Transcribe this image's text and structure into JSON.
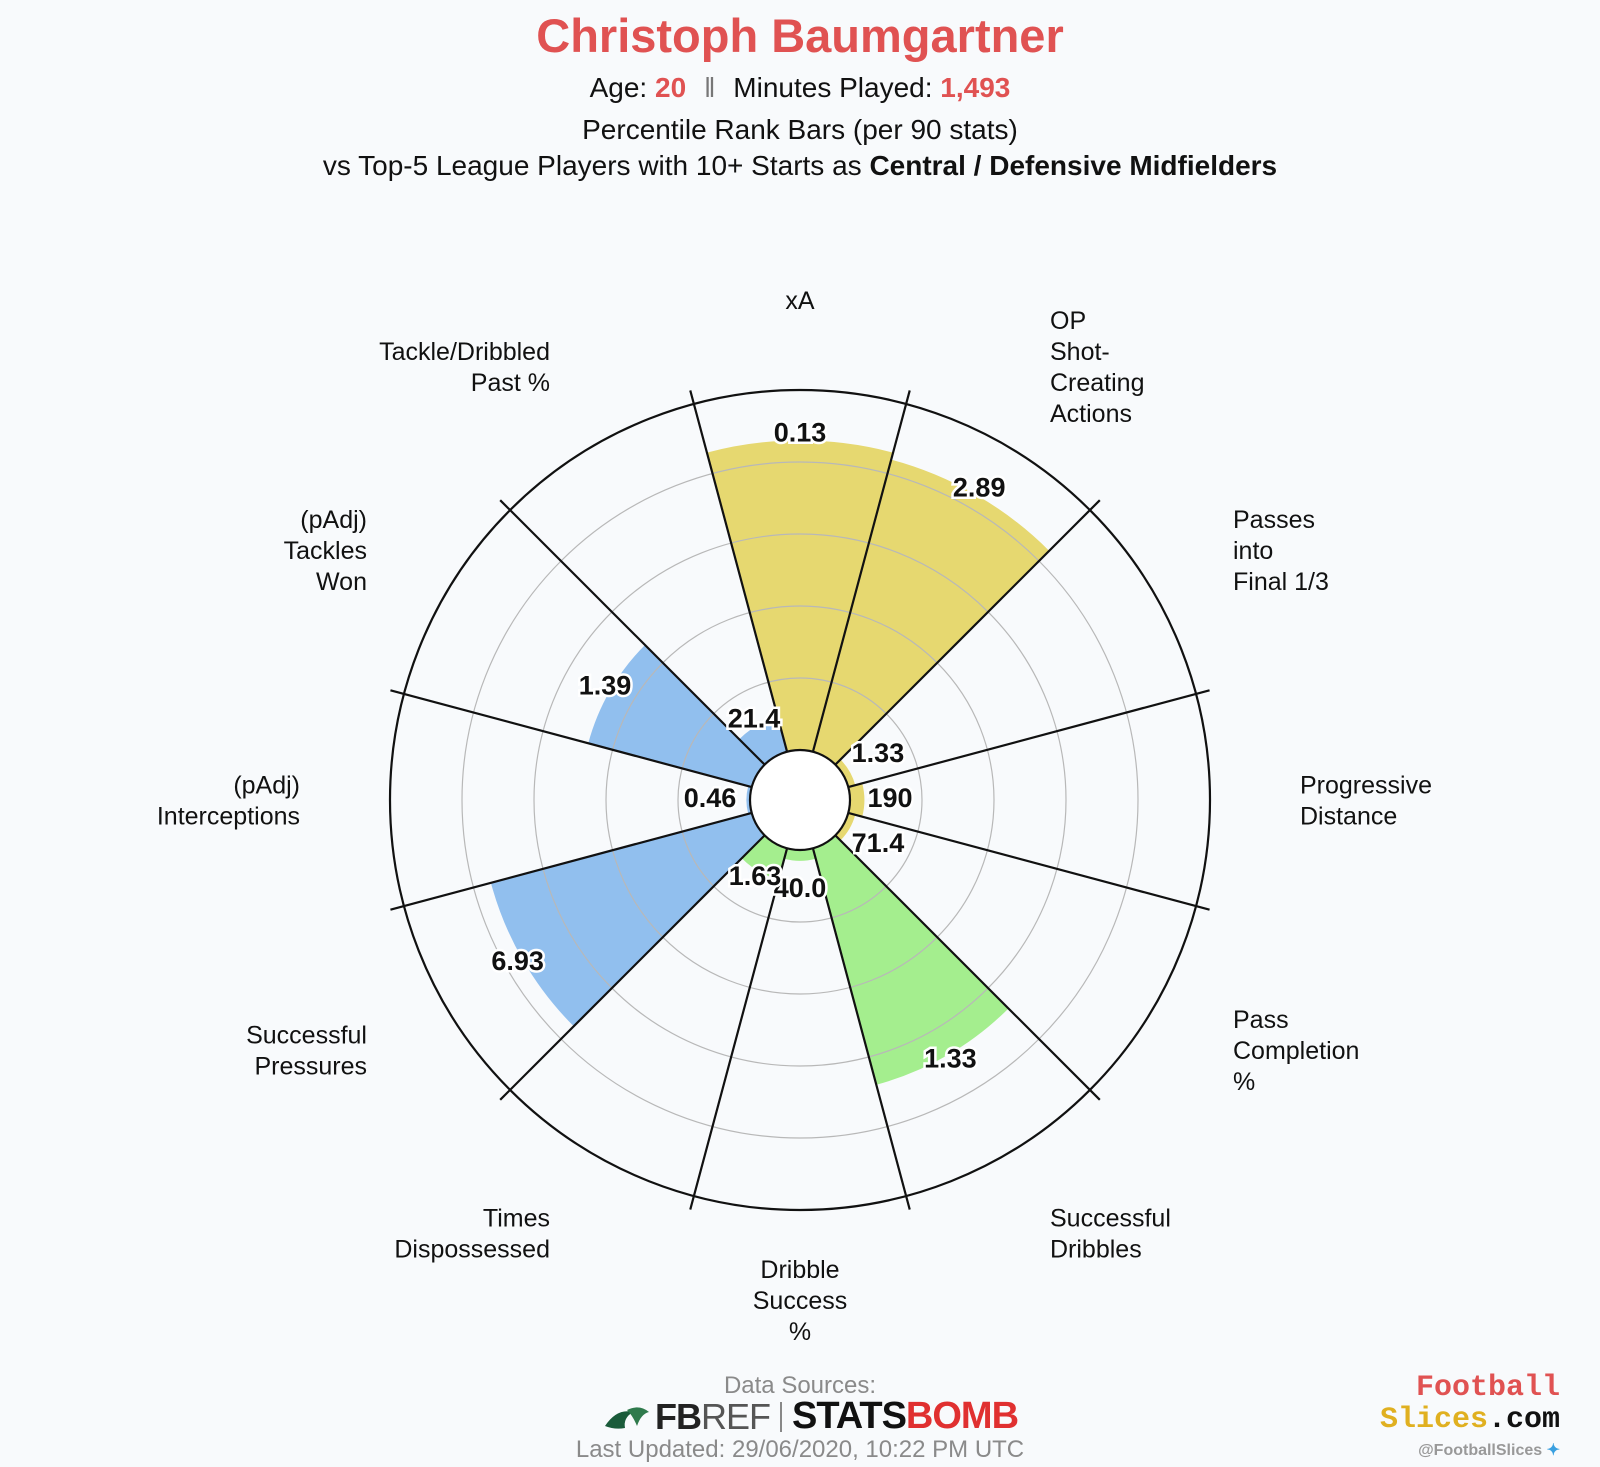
{
  "header": {
    "title": "Christoph Baumgartner",
    "age_label": "Age:",
    "age_value": "20",
    "separator": "‖",
    "minutes_label": "Minutes Played:",
    "minutes_value": "1,493",
    "subtitle": "Percentile Rank Bars (per 90 stats)",
    "comparison_prefix": "vs Top-5 League Players with 10+ Starts as",
    "comparison_position": "Central / Defensive Midfielders"
  },
  "chart_data": {
    "type": "polar-bar",
    "ylim": [
      0,
      100
    ],
    "gridlines_percentile": [
      20,
      40,
      60,
      80
    ],
    "colors": {
      "attacking": "#e6d870",
      "possession": "#a4ee8e",
      "defending": "#91bfee",
      "grid": "#b8b8b8",
      "divider": "#111111"
    },
    "metrics": [
      {
        "label": "xA",
        "value_label": "0.13",
        "percentile": 86,
        "group": "attacking"
      },
      {
        "label": "OP\nShot-\nCreating\nActions",
        "value_label": "2.89",
        "percentile": 84,
        "group": "attacking"
      },
      {
        "label": "Passes\ninto\nFinal 1/3",
        "value_label": "1.33",
        "percentile": 2,
        "group": "attacking"
      },
      {
        "label": "Progressive\nDistance",
        "value_label": "190",
        "percentile": 4,
        "group": "attacking"
      },
      {
        "label": "Pass\nCompletion\n%",
        "value_label": "71.4",
        "percentile": 2,
        "group": "attacking"
      },
      {
        "label": "Successful\nDribbles",
        "value_label": "1.33",
        "percentile": 68,
        "group": "possession"
      },
      {
        "label": "Dribble\nSuccess\n%",
        "value_label": "40.0",
        "percentile": 3,
        "group": "possession"
      },
      {
        "label": "Times\nDispossessed",
        "value_label": "1.63",
        "percentile": 9,
        "group": "possession"
      },
      {
        "label": "Successful\nPressures",
        "value_label": "6.93",
        "percentile": 75,
        "group": "defending"
      },
      {
        "label": "(pAdj)\nInterceptions",
        "value_label": "0.46",
        "percentile": 1,
        "group": "defending"
      },
      {
        "label": "(pAdj)\nTackles\nWon",
        "value_label": "1.39",
        "percentile": 47,
        "group": "defending"
      },
      {
        "label": "Tackle/Dribbled\nPast %",
        "value_label": "21.4",
        "percentile": 10,
        "group": "defending"
      }
    ]
  },
  "footer": {
    "data_sources_label": "Data Sources:",
    "fbref_bold": "FB",
    "fbref_light": "REF",
    "statsbomb_a": "STATS",
    "statsbomb_b": "BOMB",
    "last_updated": "Last Updated: 29/06/2020, 10:22 PM UTC",
    "brand_line1": "Football",
    "brand_line2a": "Slices",
    "brand_line2b": ".com",
    "twitter_handle": "@FootballSlices"
  }
}
